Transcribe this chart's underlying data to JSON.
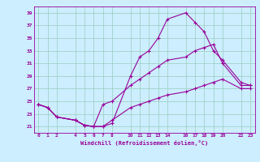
{
  "xlabel": "Windchill (Refroidissement éolien,°C)",
  "bg_color": "#cceeff",
  "grid_color": "#99ccbb",
  "line_color": "#990099",
  "x_ticks": [
    0,
    1,
    2,
    4,
    5,
    6,
    7,
    8,
    10,
    11,
    12,
    13,
    14,
    16,
    17,
    18,
    19,
    20,
    22,
    23
  ],
  "y_ticks": [
    21,
    23,
    25,
    27,
    29,
    31,
    33,
    35,
    37,
    39
  ],
  "xlim": [
    -0.5,
    23.5
  ],
  "ylim": [
    20.0,
    40.0
  ],
  "line1_x": [
    0,
    1,
    2,
    4,
    5,
    6,
    7,
    8,
    10,
    11,
    12,
    13,
    14,
    16,
    17,
    18,
    19,
    20,
    22,
    23
  ],
  "line1_y": [
    24.5,
    24.0,
    22.5,
    22.0,
    21.2,
    21.0,
    21.0,
    21.5,
    29.0,
    32.0,
    33.0,
    35.0,
    38.0,
    39.0,
    37.5,
    36.0,
    33.0,
    31.5,
    28.0,
    27.5
  ],
  "line2_x": [
    0,
    1,
    2,
    4,
    5,
    6,
    7,
    8,
    10,
    11,
    12,
    13,
    14,
    16,
    17,
    18,
    19,
    20,
    22,
    23
  ],
  "line2_y": [
    24.5,
    24.0,
    22.5,
    22.0,
    21.2,
    21.0,
    24.5,
    25.0,
    27.5,
    28.5,
    29.5,
    30.5,
    31.5,
    32.0,
    33.0,
    33.5,
    34.0,
    31.0,
    27.5,
    27.5
  ],
  "line3_x": [
    0,
    1,
    2,
    4,
    5,
    6,
    7,
    8,
    10,
    11,
    12,
    13,
    14,
    16,
    17,
    18,
    19,
    20,
    22,
    23
  ],
  "line3_y": [
    24.5,
    24.0,
    22.5,
    22.0,
    21.2,
    21.0,
    21.0,
    22.0,
    24.0,
    24.5,
    25.0,
    25.5,
    26.0,
    26.5,
    27.0,
    27.5,
    28.0,
    28.5,
    27.0,
    27.0
  ]
}
